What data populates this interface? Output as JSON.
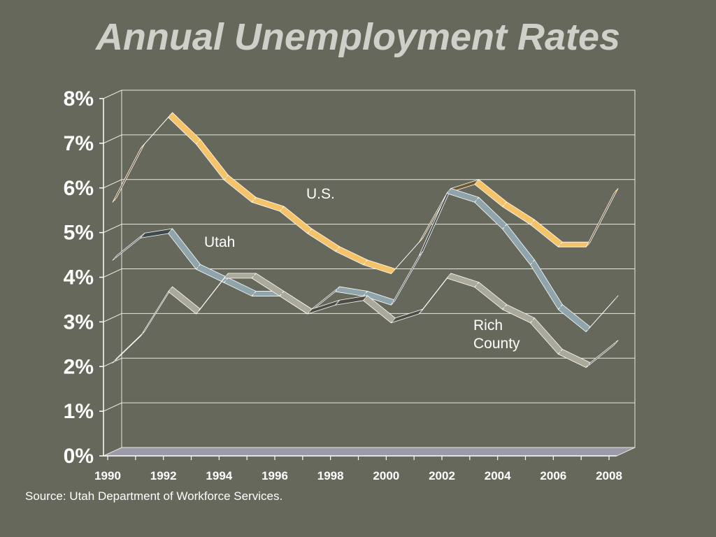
{
  "title": "Annual Unemployment Rates",
  "source": "Source: Utah Department of Workforce Services.",
  "chart_data": {
    "type": "line",
    "x": [
      1990,
      1991,
      1992,
      1993,
      1994,
      1995,
      1996,
      1997,
      1998,
      1999,
      2000,
      2001,
      2002,
      2003,
      2004,
      2005,
      2006,
      2007,
      2008
    ],
    "x_tick_labels": [
      "1990",
      "1992",
      "1994",
      "1996",
      "1998",
      "2000",
      "2002",
      "2004",
      "2006",
      "2008"
    ],
    "y_tick_labels": [
      "0%",
      "1%",
      "2%",
      "3%",
      "4%",
      "5%",
      "6%",
      "7%",
      "8%"
    ],
    "ylim": [
      0,
      8
    ],
    "grid": true,
    "series": [
      {
        "name": "U.S.",
        "color": "#f5c46a",
        "values": [
          5.6,
          6.8,
          7.5,
          6.9,
          6.1,
          5.6,
          5.4,
          4.9,
          4.5,
          4.2,
          4.0,
          4.7,
          5.8,
          6.0,
          5.5,
          5.1,
          4.6,
          4.6,
          5.8
        ]
      },
      {
        "name": "Utah",
        "color": "#8fa4ab",
        "values": [
          4.3,
          4.8,
          4.9,
          4.1,
          3.8,
          3.5,
          3.5,
          3.1,
          3.6,
          3.5,
          3.3,
          4.4,
          5.8,
          5.6,
          5.0,
          4.2,
          3.2,
          2.7,
          3.4
        ]
      },
      {
        "name": "Rich County",
        "color": "#aaa99a",
        "values": [
          2.0,
          2.6,
          3.6,
          3.1,
          3.9,
          3.9,
          3.5,
          3.1,
          3.3,
          3.4,
          2.9,
          3.1,
          3.9,
          3.7,
          3.2,
          2.9,
          2.2,
          1.9,
          2.4
        ]
      }
    ]
  }
}
